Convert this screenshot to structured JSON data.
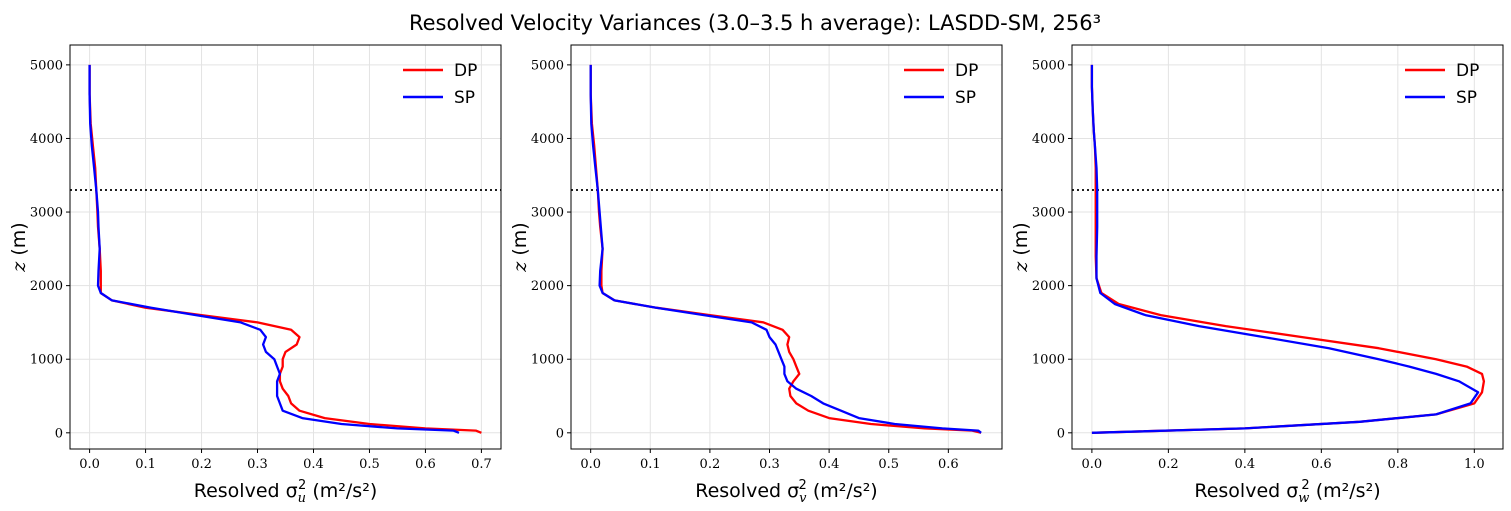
{
  "figure": {
    "title": "Resolved Velocity Variances (3.0–3.5 h average): LASDD-SM, 256³"
  },
  "chart_data": [
    {
      "type": "line",
      "title": "",
      "xlabel": "Resolved σ_u² (m²/s²)",
      "xlabel_parts": {
        "prefix": "Resolved σ",
        "sub": "u",
        "sup": "2",
        "unit": " (m²/s²)"
      },
      "ylabel": "z (m)",
      "ylabel_parts": {
        "var": "z",
        "unit": " (m)"
      },
      "xlim": [
        -0.035,
        0.735
      ],
      "ylim": [
        -220,
        5270
      ],
      "xticks": [
        0.0,
        0.1,
        0.2,
        0.3,
        0.4,
        0.5,
        0.6,
        0.7
      ],
      "xtick_labels": [
        "0.0",
        "0.1",
        "0.2",
        "0.3",
        "0.4",
        "0.5",
        "0.6",
        "0.7"
      ],
      "yticks": [
        0,
        1000,
        2000,
        3000,
        4000,
        5000
      ],
      "ytick_labels": [
        "0",
        "1000",
        "2000",
        "3000",
        "4000",
        "5000"
      ],
      "hline": 3300,
      "grid": true,
      "legend": "top-right",
      "series": [
        {
          "name": "DP",
          "color": "#ff0000",
          "x": [
            0.7,
            0.69,
            0.6,
            0.5,
            0.42,
            0.375,
            0.36,
            0.355,
            0.345,
            0.34,
            0.34,
            0.345,
            0.345,
            0.35,
            0.37,
            0.375,
            0.36,
            0.3,
            0.2,
            0.1,
            0.04,
            0.02,
            0.02,
            0.02,
            0.018,
            0.015,
            0.014,
            0.012,
            0.01,
            0.006,
            0.002,
            0.0,
            0.0
          ],
          "y": [
            0,
            30,
            60,
            120,
            200,
            300,
            400,
            500,
            600,
            700,
            800,
            900,
            1000,
            1100,
            1200,
            1300,
            1400,
            1500,
            1600,
            1700,
            1800,
            1900,
            2000,
            2200,
            2500,
            2800,
            3000,
            3300,
            3600,
            3900,
            4200,
            4600,
            5000
          ]
        },
        {
          "name": "SP",
          "color": "#0000ff",
          "x": [
            0.66,
            0.65,
            0.55,
            0.45,
            0.38,
            0.345,
            0.34,
            0.335,
            0.335,
            0.335,
            0.34,
            0.335,
            0.33,
            0.315,
            0.31,
            0.315,
            0.305,
            0.27,
            0.19,
            0.11,
            0.04,
            0.02,
            0.015,
            0.016,
            0.018,
            0.016,
            0.015,
            0.012,
            0.008,
            0.004,
            0.001,
            0.0,
            0.0
          ],
          "y": [
            0,
            30,
            60,
            120,
            200,
            300,
            400,
            500,
            600,
            700,
            800,
            900,
            1000,
            1100,
            1200,
            1300,
            1400,
            1500,
            1600,
            1700,
            1800,
            1900,
            2000,
            2200,
            2500,
            2800,
            3000,
            3300,
            3600,
            3900,
            4200,
            4600,
            5000
          ]
        }
      ]
    },
    {
      "type": "line",
      "title": "",
      "xlabel": "Resolved σ_v² (m²/s²)",
      "xlabel_parts": {
        "prefix": "Resolved σ",
        "sub": "v",
        "sup": "2",
        "unit": " (m²/s²)"
      },
      "ylabel": "z (m)",
      "ylabel_parts": {
        "var": "z",
        "unit": " (m)"
      },
      "xlim": [
        -0.033,
        0.69
      ],
      "ylim": [
        -220,
        5270
      ],
      "xticks": [
        0.0,
        0.1,
        0.2,
        0.3,
        0.4,
        0.5,
        0.6
      ],
      "xtick_labels": [
        "0.0",
        "0.1",
        "0.2",
        "0.3",
        "0.4",
        "0.5",
        "0.6"
      ],
      "yticks": [
        0,
        1000,
        2000,
        3000,
        4000,
        5000
      ],
      "ytick_labels": [
        "0",
        "1000",
        "2000",
        "3000",
        "4000",
        "5000"
      ],
      "hline": 3300,
      "grid": true,
      "legend": "top-right",
      "series": [
        {
          "name": "DP",
          "color": "#ff0000",
          "x": [
            0.655,
            0.64,
            0.56,
            0.47,
            0.4,
            0.365,
            0.345,
            0.335,
            0.333,
            0.34,
            0.35,
            0.345,
            0.34,
            0.333,
            0.33,
            0.333,
            0.322,
            0.29,
            0.2,
            0.11,
            0.04,
            0.02,
            0.018,
            0.018,
            0.02,
            0.016,
            0.014,
            0.012,
            0.009,
            0.006,
            0.002,
            0.0,
            0.0
          ],
          "y": [
            0,
            30,
            60,
            120,
            200,
            300,
            400,
            500,
            600,
            700,
            800,
            900,
            1000,
            1100,
            1200,
            1300,
            1400,
            1500,
            1600,
            1700,
            1800,
            1900,
            2000,
            2200,
            2500,
            2800,
            3000,
            3300,
            3600,
            3900,
            4200,
            4600,
            5000
          ]
        },
        {
          "name": "SP",
          "color": "#0000ff",
          "x": [
            0.655,
            0.65,
            0.59,
            0.51,
            0.45,
            0.42,
            0.39,
            0.37,
            0.345,
            0.33,
            0.325,
            0.325,
            0.32,
            0.315,
            0.31,
            0.3,
            0.295,
            0.27,
            0.19,
            0.11,
            0.04,
            0.02,
            0.015,
            0.016,
            0.02,
            0.017,
            0.015,
            0.012,
            0.008,
            0.004,
            0.001,
            0.0,
            0.0
          ],
          "y": [
            0,
            30,
            60,
            120,
            200,
            300,
            400,
            500,
            600,
            700,
            800,
            900,
            1000,
            1100,
            1200,
            1300,
            1400,
            1500,
            1600,
            1700,
            1800,
            1900,
            2000,
            2200,
            2500,
            2800,
            3000,
            3300,
            3600,
            3900,
            4200,
            4600,
            5000
          ]
        }
      ]
    },
    {
      "type": "line",
      "title": "",
      "xlabel": "Resolved σ_w² (m²/s²)",
      "xlabel_parts": {
        "prefix": "Resolved σ",
        "sub": "w",
        "sup": "2",
        "unit": " (m²/s²)"
      },
      "ylabel": "z (m)",
      "ylabel_parts": {
        "var": "z",
        "unit": " (m)"
      },
      "xlim": [
        -0.052,
        1.075
      ],
      "ylim": [
        -220,
        5270
      ],
      "xticks": [
        0.0,
        0.2,
        0.4,
        0.6,
        0.8,
        1.0
      ],
      "xtick_labels": [
        "0.0",
        "0.2",
        "0.4",
        "0.6",
        "0.8",
        "1.0"
      ],
      "yticks": [
        0,
        1000,
        2000,
        3000,
        4000,
        5000
      ],
      "ytick_labels": [
        "0",
        "1000",
        "2000",
        "3000",
        "4000",
        "5000"
      ],
      "hline": 3300,
      "grid": true,
      "legend": "top-right",
      "series": [
        {
          "name": "DP",
          "color": "#ff0000",
          "x": [
            0.0,
            0.4,
            0.7,
            0.9,
            1.0,
            1.02,
            1.025,
            1.02,
            0.98,
            0.9,
            0.75,
            0.55,
            0.35,
            0.18,
            0.07,
            0.025,
            0.012,
            0.01,
            0.01,
            0.01,
            0.01,
            0.008,
            0.005,
            0.002,
            0.0,
            0.0
          ],
          "y": [
            0,
            60,
            150,
            250,
            400,
            550,
            700,
            800,
            900,
            1000,
            1150,
            1300,
            1450,
            1600,
            1750,
            1900,
            2100,
            2400,
            2800,
            3300,
            3600,
            3900,
            4100,
            4400,
            4700,
            5000
          ]
        },
        {
          "name": "SP",
          "color": "#0000ff",
          "x": [
            0.0,
            0.4,
            0.7,
            0.9,
            0.99,
            1.01,
            0.96,
            0.9,
            0.83,
            0.75,
            0.62,
            0.45,
            0.28,
            0.14,
            0.06,
            0.022,
            0.012,
            0.012,
            0.014,
            0.014,
            0.012,
            0.008,
            0.005,
            0.002,
            0.0,
            0.0
          ],
          "y": [
            0,
            60,
            150,
            250,
            400,
            550,
            700,
            800,
            900,
            1000,
            1150,
            1300,
            1450,
            1600,
            1750,
            1900,
            2100,
            2400,
            2800,
            3300,
            3600,
            3900,
            4100,
            4400,
            4700,
            5000
          ]
        }
      ]
    }
  ]
}
